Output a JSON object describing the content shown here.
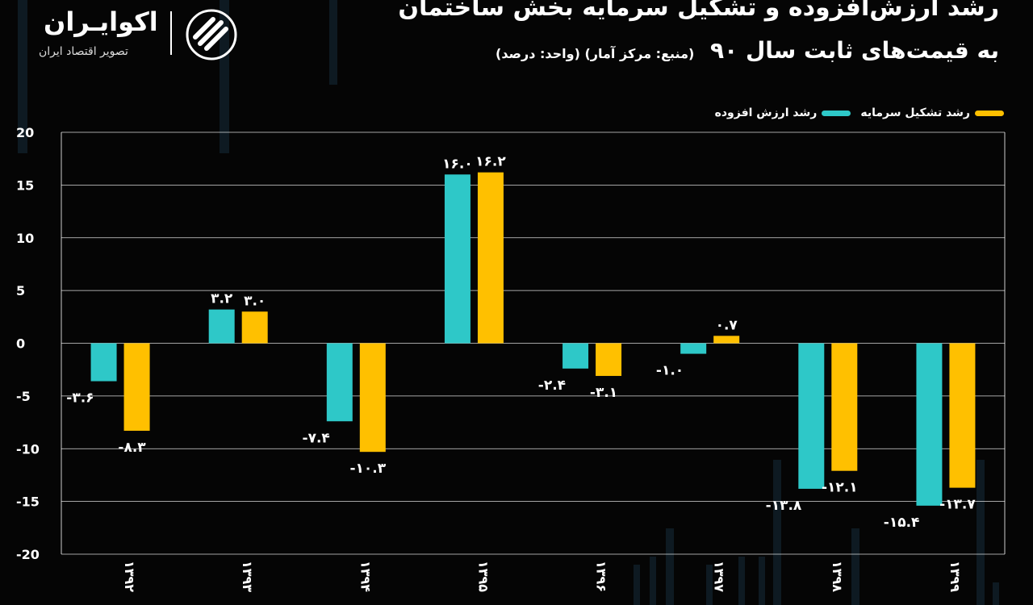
{
  "title": {
    "line1": "رشد ارزش‌افزوده و تشکیل سرمایه بخش ساختمان",
    "line2": "به قیمت‌های ثابت سال ۹۰",
    "source": "(منبع: مرکز آمار)  (واحد: درصد)"
  },
  "logo": {
    "name": "اکوایـران",
    "subtitle": "تصویر اقتصاد ایران"
  },
  "colors": {
    "value_added": "#2ec8c8",
    "capital_formation": "#ffc000",
    "grid": "#ffffff",
    "background": "#050505"
  },
  "chart_data": {
    "type": "bar",
    "title": "رشد ارزش‌افزوده و تشکیل سرمایه بخش ساختمان به قیمت‌های ثابت سال ۹۰",
    "categories": [
      "۱۳۹۲",
      "۱۳۹۳",
      "۱۳۹۴",
      "۱۳۹۵",
      "۱۳۹۶",
      "۱۳۹۷",
      "۱۳۹۸",
      "۱۳۹۹"
    ],
    "series": [
      {
        "name": "رشد ارزش افزوده",
        "color": "#2ec8c8",
        "values": [
          -3.6,
          3.2,
          -7.4,
          16.0,
          -2.4,
          -1.0,
          -13.8,
          -15.4
        ],
        "labels": [
          "-۳.۶",
          "۳.۲",
          "-۷.۴",
          "۱۶.۰",
          "-۲.۴",
          "-۱.۰",
          "-۱۳.۸",
          "-۱۵.۴"
        ]
      },
      {
        "name": "رشد تشکیل سرمایه",
        "color": "#ffc000",
        "values": [
          -8.3,
          3.0,
          -10.3,
          16.2,
          -3.1,
          0.7,
          -12.1,
          -13.7
        ],
        "labels": [
          "-۸.۳",
          "۳.۰",
          "-۱۰.۳",
          "۱۶.۲",
          "-۳.۱",
          "۰.۷",
          "-۱۲.۱",
          "-۱۳.۷"
        ]
      }
    ],
    "yticks": [
      20,
      15,
      10,
      5,
      0,
      -5,
      -10,
      -15,
      -20
    ],
    "ytick_labels": [
      "20",
      "15",
      "10",
      "5",
      "0",
      "-5",
      "-10",
      "-15",
      "-20"
    ],
    "ylim": [
      -20,
      20
    ],
    "grid": true,
    "legend": "top-right"
  }
}
